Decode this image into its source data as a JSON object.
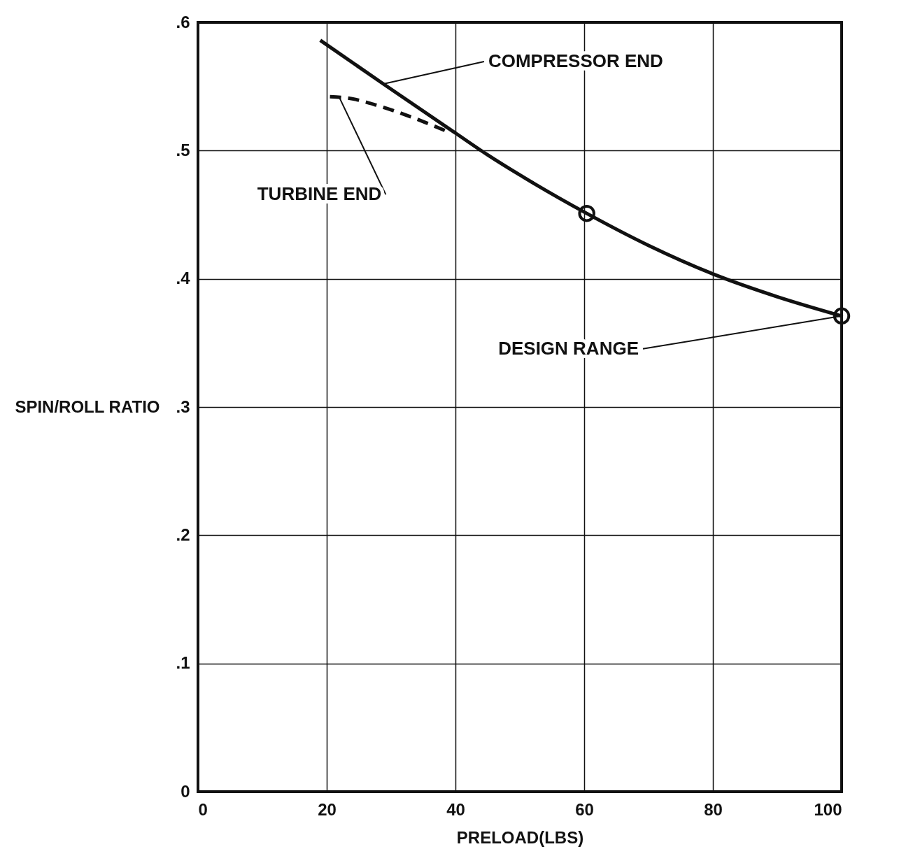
{
  "chart_data": {
    "type": "line",
    "xlabel": "PRELOAD(LBS)",
    "ylabel": "SPIN/ROLL RATIO",
    "xlim": [
      0,
      100
    ],
    "xticks": [
      0,
      20,
      40,
      60,
      80,
      100
    ],
    "ylim": [
      0,
      0.6
    ],
    "yticks": [
      0,
      {
        "value": 0.1,
        "label": ".1"
      },
      {
        "value": 0.2,
        "label": ".2"
      },
      {
        "value": 0.3,
        "label": ".3"
      },
      {
        "value": 0.4,
        "label": ".4"
      },
      {
        "value": 0.5,
        "label": ".5"
      },
      {
        "value": 0.6,
        "label": ".6"
      }
    ],
    "grid": true,
    "series": [
      {
        "line_style": "solid",
        "marker": "none",
        "color": "#111111",
        "x": [
          19,
          28.8,
          40.2,
          44.9,
          50,
          60.4,
          70,
          80.4,
          90,
          100
        ],
        "values": [
          0.586,
          0.552,
          0.513,
          0.497,
          0.481,
          0.451,
          0.426,
          0.403,
          0.386,
          0.371
        ]
      },
      {
        "type": "line",
        "line_style": "dashed",
        "marker": "none",
        "color": "#111111",
        "x": [
          20.5,
          23.3,
          28,
          32.7,
          38.7
        ],
        "values": [
          0.542,
          0.541,
          0.535,
          0.527,
          0.515
        ]
      },
      {
        "type": "scatter",
        "marker": "circle",
        "color": "#111111",
        "x": [
          60.4,
          100
        ],
        "values": [
          0.451,
          0.371
        ]
      }
    ],
    "annotations": [
      {
        "text": "COMPRESSOR END",
        "x": 28.8,
        "y": 0.552
      },
      {
        "text": "TURBINE END",
        "x": 22,
        "y": 0.541
      },
      {
        "text": "DESIGN RANGE",
        "x": 100,
        "y": 0.371
      }
    ]
  }
}
